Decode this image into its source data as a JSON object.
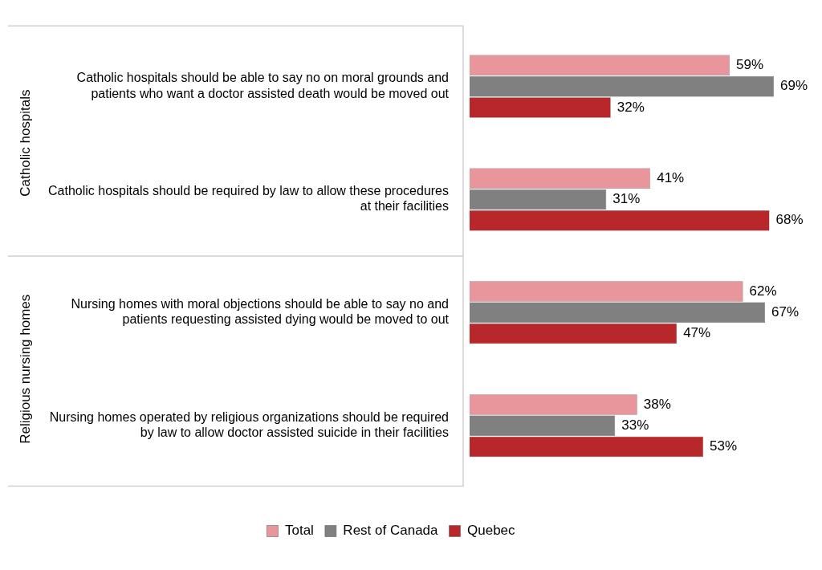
{
  "chart_data": {
    "type": "bar",
    "orientation": "horizontal",
    "categories": [
      "Catholic hospitals should be able to say no on moral grounds and patients who want a doctor assisted death would be moved out",
      "Catholic hospitals should be required by law to allow these procedures at their facilities",
      "Nursing homes with moral objections should be able to say no and patients requesting assisted dying would be moved to out",
      "Nursing homes operated by religious organizations should be required by law to allow doctor assisted suicide in their facilities"
    ],
    "series": [
      {
        "name": "Total",
        "color": "#e8969c",
        "values": [
          59,
          41,
          62,
          38
        ],
        "value_labels": [
          "59%",
          "41%",
          "62%",
          "38%"
        ]
      },
      {
        "name": "Rest of Canada",
        "color": "#808080",
        "values": [
          69,
          31,
          67,
          33
        ],
        "value_labels": [
          "69%",
          "31%",
          "67%",
          "33%"
        ]
      },
      {
        "name": "Quebec",
        "color": "#b8282a",
        "values": [
          32,
          68,
          47,
          53
        ],
        "value_labels": [
          "32%",
          "68%",
          "47%",
          "53%"
        ]
      }
    ],
    "annotations": [
      "Catholic hospitals",
      "Religious nursing homes"
    ],
    "legend": "bottom"
  }
}
